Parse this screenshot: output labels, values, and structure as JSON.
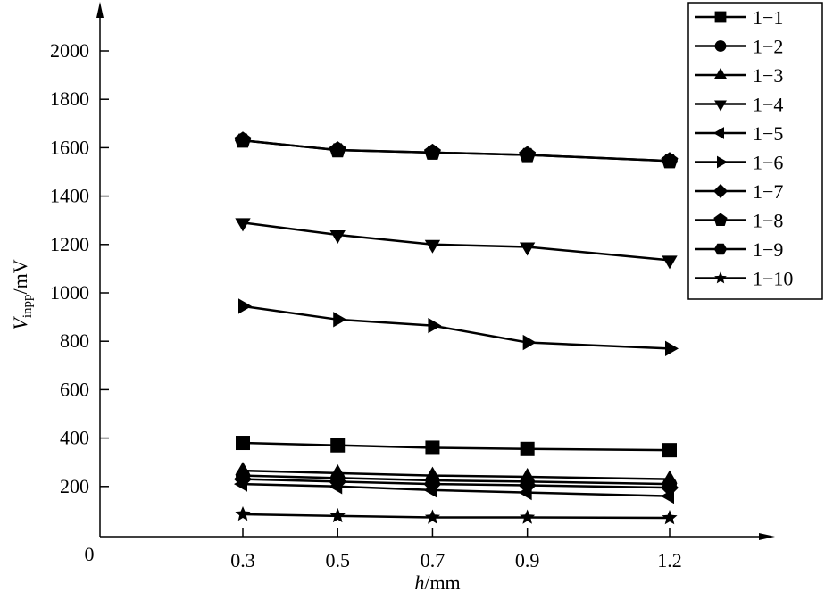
{
  "chart_data": {
    "type": "line",
    "title": "",
    "xlabel": "h/mm",
    "xlabel_italic": "h",
    "xlabel_unit": "/mm",
    "ylabel_main": "V",
    "ylabel_sub": "inpp",
    "ylabel_unit": "/mV",
    "x": [
      0.3,
      0.5,
      0.7,
      0.9,
      1.2
    ],
    "x_ticks": [
      "0.3",
      "0.5",
      "0.7",
      "0.9",
      "1.2"
    ],
    "origin_label": "0",
    "y_ticks": [
      "200",
      "400",
      "600",
      "800",
      "1000",
      "1200",
      "1400",
      "1600",
      "1800",
      "2000"
    ],
    "ylim": [
      0,
      2000
    ],
    "legend_position": "top-right",
    "series": [
      {
        "name": "1−1",
        "marker": "square",
        "values": [
          380,
          370,
          360,
          355,
          350
        ]
      },
      {
        "name": "1−2",
        "marker": "circle",
        "values": [
          245,
          235,
          225,
          220,
          210
        ]
      },
      {
        "name": "1−3",
        "marker": "triangle-up",
        "values": [
          265,
          255,
          245,
          240,
          230
        ]
      },
      {
        "name": "1−4",
        "marker": "triangle-down",
        "values": [
          1290,
          1240,
          1200,
          1190,
          1135
        ]
      },
      {
        "name": "1−5",
        "marker": "triangle-left",
        "values": [
          210,
          200,
          185,
          175,
          160
        ]
      },
      {
        "name": "1−6",
        "marker": "triangle-right",
        "values": [
          945,
          890,
          865,
          795,
          770
        ]
      },
      {
        "name": "1−7",
        "marker": "diamond",
        "values": [
          230,
          220,
          210,
          205,
          195
        ]
      },
      {
        "name": "1−8",
        "marker": "pentagon",
        "values": [
          1630,
          1590,
          1580,
          1570,
          1545
        ]
      },
      {
        "name": "1−9",
        "marker": "hexagon",
        "values": [
          1630,
          1590,
          1580,
          1570,
          1545
        ]
      },
      {
        "name": "1−10",
        "marker": "star",
        "values": [
          85,
          78,
          72,
          72,
          70
        ]
      }
    ]
  }
}
